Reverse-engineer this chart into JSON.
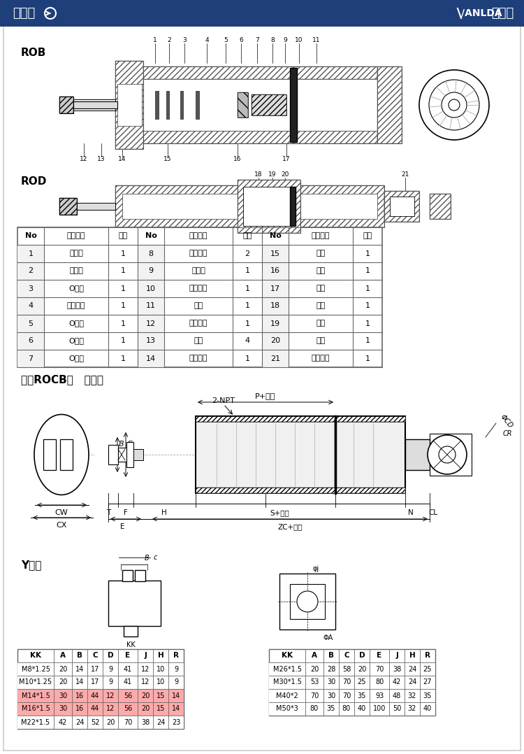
{
  "header_bg": "#1e3f7a",
  "bg_color": "#ffffff",
  "table_header": [
    "No",
    "零件名称",
    "数量",
    "No",
    "零件名称",
    "数量",
    "No",
    "零件名称",
    "数量"
  ],
  "table_data": [
    [
      "1",
      "活塞杆",
      "1",
      "8",
      "孔用油封",
      "2",
      "15",
      "缸筒",
      "1"
    ],
    [
      "2",
      "防尘环",
      "1",
      "9",
      "耐磨环",
      "1",
      "16",
      "活塞",
      "1"
    ],
    [
      "3",
      "O型环",
      "1",
      "10",
      "弹簧垫圈",
      "1",
      "17",
      "后盖",
      "1"
    ],
    [
      "4",
      "轴用油封",
      "1",
      "11",
      "螺母",
      "1",
      "18",
      "缸筒",
      "1"
    ],
    [
      "5",
      "O型环",
      "1",
      "12",
      "轴心螺母",
      "1",
      "19",
      "磁石",
      "1"
    ],
    [
      "6",
      "O型环",
      "1",
      "13",
      "前盖",
      "4",
      "20",
      "活塞",
      "1"
    ],
    [
      "7",
      "O型环",
      "1",
      "14",
      "前盖螺母",
      "1",
      "21",
      "可调螺母",
      "1"
    ]
  ],
  "section2_title": "标准ROCB型   双耳型",
  "section3_title": "Y接头",
  "table2_header": [
    "KK",
    "A",
    "B",
    "C",
    "D",
    "E",
    "J",
    "H",
    "R"
  ],
  "table2_data": [
    [
      "M8*1.25",
      "20",
      "14",
      "17",
      "9",
      "41",
      "12",
      "10",
      "9"
    ],
    [
      "M10*1.25",
      "20",
      "14",
      "17",
      "9",
      "41",
      "12",
      "10",
      "9"
    ],
    [
      "M14*1.5",
      "30",
      "16",
      "44",
      "12",
      "56",
      "20",
      "15",
      "14"
    ],
    [
      "M16*1.5",
      "30",
      "16",
      "44",
      "12",
      "56",
      "20",
      "15",
      "14"
    ],
    [
      "M22*1.5",
      "42",
      "24",
      "52",
      "20",
      "70",
      "38",
      "24",
      "23"
    ]
  ],
  "table2_highlight_rows": [
    2,
    3
  ],
  "table3_header": [
    "KK",
    "A",
    "B",
    "C",
    "D",
    "E",
    "J",
    "H",
    "R"
  ],
  "table3_data": [
    [
      "M26*1.5",
      "20",
      "28",
      "58",
      "20",
      "70",
      "38",
      "24",
      "25"
    ],
    [
      "M30*1.5",
      "53",
      "30",
      "70",
      "25",
      "80",
      "42",
      "24",
      "27"
    ],
    [
      "M40*2",
      "70",
      "30",
      "70",
      "35",
      "93",
      "48",
      "32",
      "35"
    ],
    [
      "M50*3",
      "80",
      "35",
      "80",
      "40",
      "100",
      "50",
      "32",
      "40"
    ]
  ],
  "table2_highlight_color": "#ffaaaa",
  "table_border_color": "#666666",
  "rob_label": "ROB",
  "rod_label": "ROD"
}
